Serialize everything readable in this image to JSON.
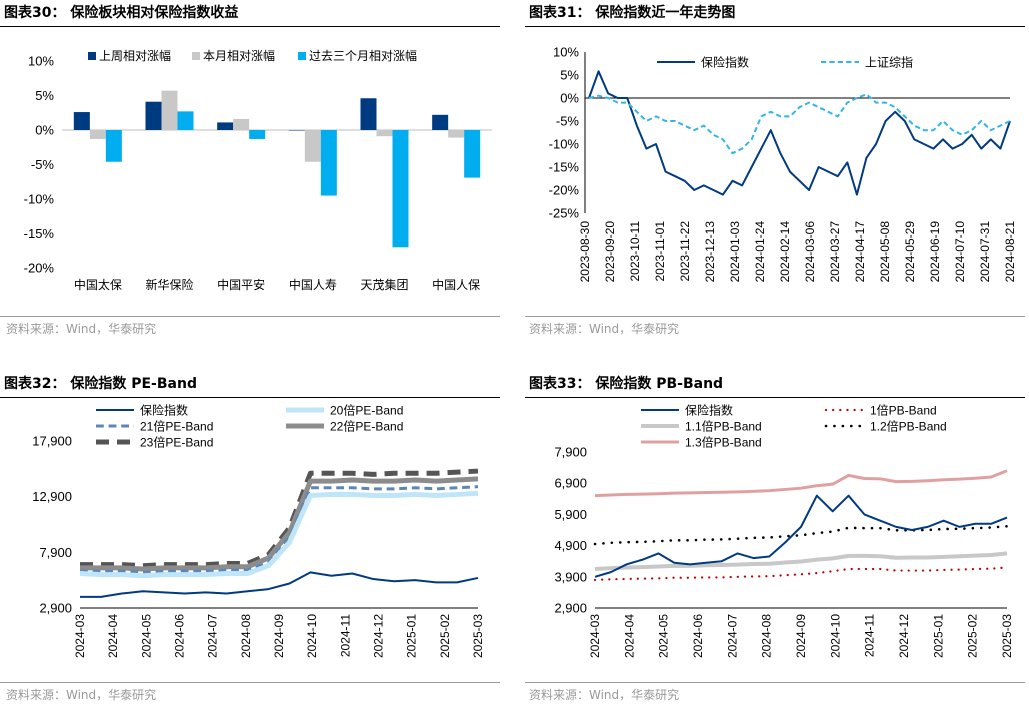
{
  "charts": [
    {
      "id": "c30",
      "title": "图表30： 保险板块相对保险指数收益",
      "source": "资料来源：Wind，华泰研究",
      "chart_data": {
        "type": "bar",
        "categories": [
          "中国太保",
          "新华保险",
          "中国平安",
          "中国人寿",
          "天茂集团",
          "中国人保"
        ],
        "series": [
          {
            "name": "上周相对涨幅",
            "color": "#003a80",
            "values": [
              2.6,
              4.1,
              1.1,
              0.0,
              4.6,
              2.2
            ]
          },
          {
            "name": "本月相对涨幅",
            "color": "#c8c8c8",
            "values": [
              -1.3,
              5.7,
              1.6,
              -4.6,
              -0.9,
              -1.1
            ]
          },
          {
            "name": "过去三个月相对涨幅",
            "color": "#00aeef",
            "values": [
              -4.6,
              2.7,
              -1.3,
              -9.5,
              -17.0,
              -6.9
            ]
          }
        ],
        "ylim": [
          -20,
          10
        ],
        "yticks": [
          -20,
          -15,
          -10,
          -5,
          0,
          5,
          10
        ],
        "ytick_labels": [
          "-20%",
          "-15%",
          "-10%",
          "-5%",
          "0%",
          "5%",
          "10%"
        ]
      }
    },
    {
      "id": "c31",
      "title": "图表31： 保险指数近一年走势图",
      "source": "资料来源：Wind，华泰研究",
      "chart_data": {
        "type": "line",
        "xtick_labels": [
          "2023-08-30",
          "2023-09-20",
          "2023-10-11",
          "2023-11-01",
          "2023-11-22",
          "2023-12-13",
          "2024-01-03",
          "2024-01-24",
          "2024-02-14",
          "2024-03-06",
          "2024-03-27",
          "2024-04-17",
          "2024-05-08",
          "2024-05-29",
          "2024-06-19",
          "2024-07-10",
          "2024-07-31",
          "2024-08-21"
        ],
        "ylim": [
          -25,
          10
        ],
        "yticks": [
          -25,
          -20,
          -15,
          -10,
          -5,
          0,
          5,
          10
        ],
        "ytick_labels": [
          "-25%",
          "-20%",
          "-15%",
          "-10%",
          "-5%",
          "0%",
          "5%",
          "10%"
        ],
        "series": [
          {
            "name": "保险指数",
            "color": "#003a80",
            "style": "solid",
            "values": [
              0,
              5.8,
              1,
              0,
              0,
              -6,
              -11,
              -10,
              -16,
              -17,
              -18,
              -20,
              -19,
              -20,
              -21,
              -18,
              -19,
              -15,
              -11,
              -7,
              -12,
              -16,
              -18,
              -20,
              -15,
              -16,
              -17,
              -14,
              -21,
              -13,
              -10,
              -5,
              -3,
              -5,
              -9,
              -10,
              -11,
              -9,
              -11,
              -10,
              -8,
              -11,
              -9,
              -11,
              -5
            ]
          },
          {
            "name": "上证综指",
            "color": "#33b5e8",
            "style": "dashed",
            "values": [
              0,
              0.5,
              0,
              -1,
              -1,
              -3,
              -5,
              -4,
              -5,
              -5,
              -6,
              -7,
              -6,
              -8,
              -9,
              -12,
              -11,
              -9,
              -4,
              -3,
              -4,
              -4,
              -2,
              -1,
              -2,
              -3,
              -4,
              -1,
              0,
              0.8,
              -1,
              -1,
              -2,
              -4,
              -6,
              -7,
              -7,
              -5,
              -7,
              -8,
              -7,
              -5,
              -7,
              -6,
              -5
            ]
          }
        ]
      }
    },
    {
      "id": "c32",
      "title": "图表32： 保险指数 PE-Band",
      "source": "资料来源：Wind，华泰研究",
      "chart_data": {
        "type": "line",
        "xtick_labels": [
          "2024-03",
          "2024-04",
          "2024-05",
          "2024-06",
          "2024-07",
          "2024-08",
          "2024-09",
          "2024-10",
          "2024-11",
          "2024-12",
          "2025-01",
          "2025-02",
          "2025-03"
        ],
        "ylim": [
          2900,
          17900
        ],
        "yticks": [
          2900,
          7900,
          12900,
          17900
        ],
        "ytick_labels": [
          "2,900",
          "7,900",
          "12,900",
          "17,900"
        ],
        "series": [
          {
            "name": "保险指数",
            "color": "#003a80",
            "style": "solid",
            "width": 2,
            "values": [
              3900,
              3900,
              4200,
              4400,
              4300,
              4200,
              4300,
              4200,
              4400,
              4600,
              5100,
              6100,
              5800,
              6000,
              5500,
              5300,
              5400,
              5200,
              5200,
              5600
            ]
          },
          {
            "name": "20倍PE-Band",
            "color": "#bfe6f8",
            "style": "solid",
            "width": 5,
            "values": [
              6000,
              5900,
              5900,
              5800,
              5900,
              5900,
              5900,
              6000,
              6000,
              6700,
              8800,
              13000,
              13100,
              13100,
              13000,
              13000,
              13100,
              13000,
              13100,
              13200
            ]
          },
          {
            "name": "21倍PE-Band",
            "color": "#5b86b8",
            "style": "dashed",
            "width": 3,
            "values": [
              6200,
              6200,
              6200,
              6100,
              6200,
              6200,
              6200,
              6300,
              6300,
              7000,
              9200,
              13700,
              13700,
              13700,
              13600,
              13600,
              13700,
              13600,
              13700,
              13800
            ]
          },
          {
            "name": "22倍PE-Band",
            "color": "#8c8c8c",
            "style": "solid",
            "width": 5,
            "values": [
              6500,
              6500,
              6500,
              6400,
              6500,
              6500,
              6500,
              6600,
              6600,
              7400,
              9700,
              14300,
              14300,
              14400,
              14300,
              14300,
              14400,
              14300,
              14400,
              14500
            ]
          },
          {
            "name": "23倍PE-Band",
            "color": "#555555",
            "style": "dashed",
            "width": 5,
            "values": [
              6800,
              6800,
              6800,
              6700,
              6800,
              6800,
              6800,
              6900,
              6900,
              7700,
              10100,
              15000,
              15000,
              15000,
              14900,
              15000,
              15000,
              15000,
              15100,
              15200
            ]
          }
        ]
      }
    },
    {
      "id": "c33",
      "title": "图表33： 保险指数 PB-Band",
      "source": "资料来源：Wind，华泰研究",
      "chart_data": {
        "type": "line",
        "xtick_labels": [
          "2024-03",
          "2024-04",
          "2024-05",
          "2024-06",
          "2024-07",
          "2024-08",
          "2024-09",
          "2024-10",
          "2024-11",
          "2024-12",
          "2025-01",
          "2025-02",
          "2025-03"
        ],
        "ylim": [
          2900,
          7900
        ],
        "yticks": [
          2900,
          3900,
          4900,
          5900,
          6900,
          7900
        ],
        "ytick_labels": [
          "2,900",
          "3,900",
          "4,900",
          "5,900",
          "6,900",
          "7,900"
        ],
        "series": [
          {
            "name": "保险指数",
            "color": "#003a80",
            "style": "solid",
            "width": 2,
            "values": [
              3900,
              4050,
              4300,
              4450,
              4650,
              4350,
              4300,
              4350,
              4400,
              4650,
              4500,
              4550,
              5000,
              5500,
              6500,
              6000,
              6500,
              5900,
              5700,
              5500,
              5400,
              5500,
              5700,
              5500,
              5600,
              5600,
              5800
            ]
          },
          {
            "name": "1倍PB-Band",
            "color": "#c00000",
            "style": "dot",
            "width": 2.2,
            "values": [
              3800,
              3820,
              3830,
              3840,
              3850,
              3870,
              3870,
              3880,
              3880,
              3900,
              3910,
              3920,
              3950,
              3980,
              4020,
              4080,
              4150,
              4150,
              4150,
              4100,
              4100,
              4100,
              4120,
              4130,
              4150,
              4160,
              4200
            ]
          },
          {
            "name": "1.1倍PB-Band",
            "color": "#c8c8c8",
            "style": "solid",
            "width": 4,
            "values": [
              4150,
              4180,
              4200,
              4210,
              4230,
              4250,
              4250,
              4270,
              4280,
              4290,
              4310,
              4320,
              4360,
              4390,
              4450,
              4490,
              4570,
              4570,
              4560,
              4510,
              4520,
              4520,
              4540,
              4560,
              4580,
              4600,
              4650
            ]
          },
          {
            "name": "1.2倍PB-Band",
            "color": "#000000",
            "style": "dot",
            "width": 2.6,
            "values": [
              4950,
              4990,
              5010,
              5020,
              5040,
              5070,
              5070,
              5090,
              5100,
              5120,
              5150,
              5160,
              5200,
              5230,
              5300,
              5350,
              5470,
              5460,
              5460,
              5390,
              5390,
              5400,
              5430,
              5440,
              5460,
              5480,
              5520
            ]
          },
          {
            "name": "1.3倍PB-Band",
            "color": "#e0a0a0",
            "style": "solid",
            "width": 3,
            "values": [
              6500,
              6520,
              6540,
              6550,
              6560,
              6580,
              6590,
              6600,
              6610,
              6620,
              6640,
              6660,
              6700,
              6740,
              6820,
              6870,
              7150,
              7050,
              7040,
              6950,
              6960,
              6980,
              7010,
              7030,
              7060,
              7100,
              7300
            ]
          }
        ]
      }
    }
  ]
}
